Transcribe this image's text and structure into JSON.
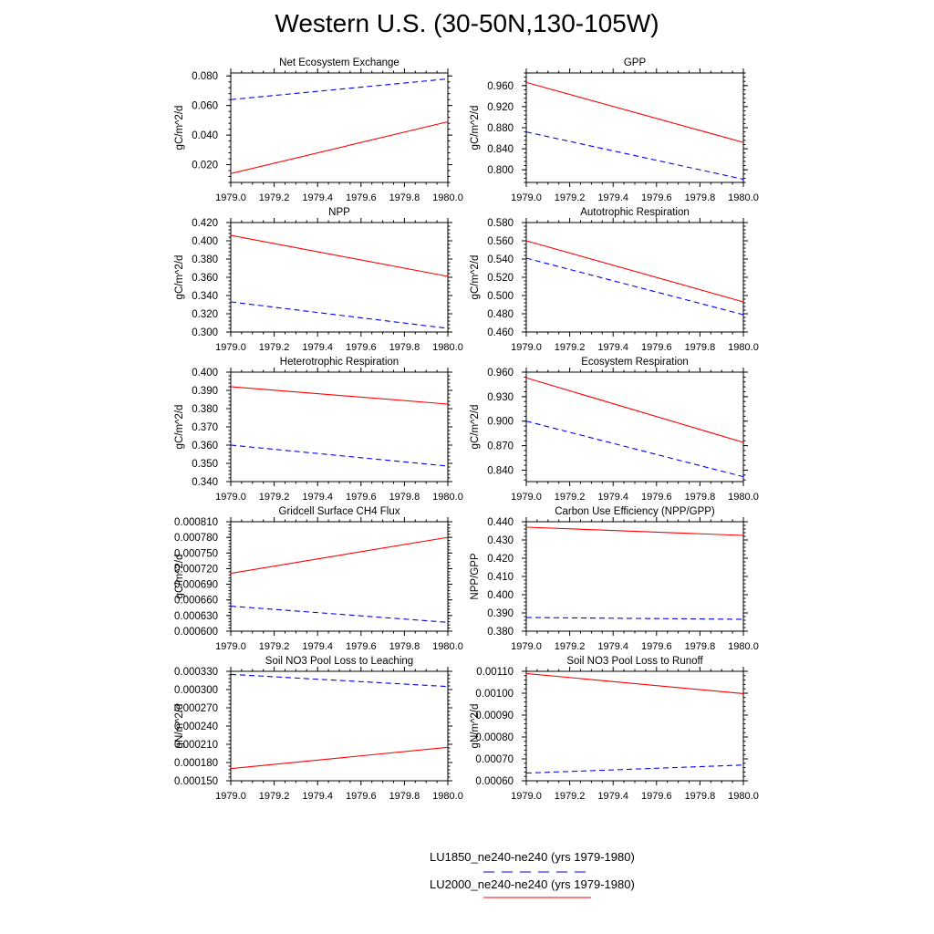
{
  "title": "Western U.S. (30-50N,130-105W)",
  "legend": [
    {
      "label": "LU1850_ne240-ne240 (yrs 1979-1980)",
      "color": "#0000ff",
      "dash": true
    },
    {
      "label": "LU2000_ne240-ne240 (yrs 1979-1980)",
      "color": "#ff0000",
      "dash": false
    }
  ],
  "chart_data": [
    {
      "type": "line",
      "title": "Net Ecosystem Exchange",
      "ylabel": "gC/m^2/d",
      "x": [
        1979.0,
        1980.0
      ],
      "xlim": [
        1979.0,
        1980.0
      ],
      "xticks": [
        "1979.0",
        "1979.2",
        "1979.4",
        "1979.6",
        "1979.8",
        "1980.0"
      ],
      "ylim": [
        0.008,
        0.082
      ],
      "yticks": [
        "0.020",
        "0.040",
        "0.060",
        "0.080"
      ],
      "series": [
        {
          "values": [
            0.064,
            0.078
          ],
          "color": "#0000ff",
          "dash": true
        },
        {
          "values": [
            0.014,
            0.049
          ],
          "color": "#ff0000",
          "dash": false
        }
      ]
    },
    {
      "type": "line",
      "title": "GPP",
      "ylabel": "gC/m^2/d",
      "x": [
        1979.0,
        1980.0
      ],
      "xlim": [
        1979.0,
        1980.0
      ],
      "xticks": [
        "1979.0",
        "1979.2",
        "1979.4",
        "1979.6",
        "1979.8",
        "1980.0"
      ],
      "ylim": [
        0.776,
        0.984
      ],
      "yticks": [
        "0.800",
        "0.840",
        "0.880",
        "0.920",
        "0.960"
      ],
      "series": [
        {
          "values": [
            0.872,
            0.782
          ],
          "color": "#0000ff",
          "dash": true
        },
        {
          "values": [
            0.966,
            0.852
          ],
          "color": "#ff0000",
          "dash": false
        }
      ]
    },
    {
      "type": "line",
      "title": "NPP",
      "ylabel": "gC/m^2/d",
      "x": [
        1979.0,
        1980.0
      ],
      "xlim": [
        1979.0,
        1980.0
      ],
      "xticks": [
        "1979.0",
        "1979.2",
        "1979.4",
        "1979.6",
        "1979.8",
        "1980.0"
      ],
      "ylim": [
        0.3,
        0.42
      ],
      "yticks": [
        "0.300",
        "0.320",
        "0.340",
        "0.360",
        "0.380",
        "0.400",
        "0.420"
      ],
      "series": [
        {
          "values": [
            0.333,
            0.304
          ],
          "color": "#0000ff",
          "dash": true
        },
        {
          "values": [
            0.406,
            0.361
          ],
          "color": "#ff0000",
          "dash": false
        }
      ]
    },
    {
      "type": "line",
      "title": "Autotrophic Respiration",
      "ylabel": "gC/m^2/d",
      "x": [
        1979.0,
        1980.0
      ],
      "xlim": [
        1979.0,
        1980.0
      ],
      "xticks": [
        "1979.0",
        "1979.2",
        "1979.4",
        "1979.6",
        "1979.8",
        "1980.0"
      ],
      "ylim": [
        0.46,
        0.58
      ],
      "yticks": [
        "0.460",
        "0.480",
        "0.500",
        "0.520",
        "0.540",
        "0.560",
        "0.580"
      ],
      "series": [
        {
          "values": [
            0.541,
            0.479
          ],
          "color": "#0000ff",
          "dash": true
        },
        {
          "values": [
            0.56,
            0.493
          ],
          "color": "#ff0000",
          "dash": false
        }
      ]
    },
    {
      "type": "line",
      "title": "Heterotrophic Respiration",
      "ylabel": "gC/m^2/d",
      "x": [
        1979.0,
        1980.0
      ],
      "xlim": [
        1979.0,
        1980.0
      ],
      "xticks": [
        "1979.0",
        "1979.2",
        "1979.4",
        "1979.6",
        "1979.8",
        "1980.0"
      ],
      "ylim": [
        0.34,
        0.4
      ],
      "yticks": [
        "0.340",
        "0.350",
        "0.360",
        "0.370",
        "0.380",
        "0.390",
        "0.400"
      ],
      "series": [
        {
          "values": [
            0.36,
            0.3485
          ],
          "color": "#0000ff",
          "dash": true
        },
        {
          "values": [
            0.392,
            0.3825
          ],
          "color": "#ff0000",
          "dash": false
        }
      ]
    },
    {
      "type": "line",
      "title": "Ecosystem Respiration",
      "ylabel": "gC/m^2/d",
      "x": [
        1979.0,
        1980.0
      ],
      "xlim": [
        1979.0,
        1980.0
      ],
      "xticks": [
        "1979.0",
        "1979.2",
        "1979.4",
        "1979.6",
        "1979.8",
        "1980.0"
      ],
      "ylim": [
        0.826,
        0.96
      ],
      "yticks": [
        "0.840",
        "0.870",
        "0.900",
        "0.930",
        "0.960"
      ],
      "series": [
        {
          "values": [
            0.9,
            0.832
          ],
          "color": "#0000ff",
          "dash": true
        },
        {
          "values": [
            0.953,
            0.874
          ],
          "color": "#ff0000",
          "dash": false
        }
      ]
    },
    {
      "type": "line",
      "title": "Gridcell Surface CH4 Flux",
      "ylabel": "gC/m^2/d",
      "x": [
        1979.0,
        1980.0
      ],
      "xlim": [
        1979.0,
        1980.0
      ],
      "xticks": [
        "1979.0",
        "1979.2",
        "1979.4",
        "1979.6",
        "1979.8",
        "1980.0"
      ],
      "ylim": [
        0.0006,
        0.00081
      ],
      "yticks": [
        "0.000600",
        "0.000630",
        "0.000660",
        "0.000690",
        "0.000720",
        "0.000750",
        "0.000780",
        "0.000810"
      ],
      "series": [
        {
          "values": [
            0.000648,
            0.000617
          ],
          "color": "#0000ff",
          "dash": true
        },
        {
          "values": [
            0.000711,
            0.00078
          ],
          "color": "#ff0000",
          "dash": false
        }
      ]
    },
    {
      "type": "line",
      "title": "Carbon Use Efficiency (NPP/GPP)",
      "ylabel": "NPP/GPP",
      "x": [
        1979.0,
        1980.0
      ],
      "xlim": [
        1979.0,
        1980.0
      ],
      "xticks": [
        "1979.0",
        "1979.2",
        "1979.4",
        "1979.6",
        "1979.8",
        "1980.0"
      ],
      "ylim": [
        0.38,
        0.44
      ],
      "yticks": [
        "0.380",
        "0.390",
        "0.400",
        "0.410",
        "0.420",
        "0.430",
        "0.440"
      ],
      "series": [
        {
          "values": [
            0.3875,
            0.3865
          ],
          "color": "#0000ff",
          "dash": true
        },
        {
          "values": [
            0.437,
            0.4325
          ],
          "color": "#ff0000",
          "dash": false
        }
      ]
    },
    {
      "type": "line",
      "title": "Soil NO3 Pool Loss to Leaching",
      "ylabel": "gN/m^2/d",
      "x": [
        1979.0,
        1980.0
      ],
      "xlim": [
        1979.0,
        1980.0
      ],
      "xticks": [
        "1979.0",
        "1979.2",
        "1979.4",
        "1979.6",
        "1979.8",
        "1980.0"
      ],
      "ylim": [
        0.00015,
        0.00033
      ],
      "yticks": [
        "0.000150",
        "0.000180",
        "0.000210",
        "0.000240",
        "0.000270",
        "0.000300",
        "0.000330"
      ],
      "series": [
        {
          "values": [
            0.000325,
            0.000305
          ],
          "color": "#0000ff",
          "dash": true
        },
        {
          "values": [
            0.00017,
            0.000205
          ],
          "color": "#ff0000",
          "dash": false
        }
      ]
    },
    {
      "type": "line",
      "title": "Soil NO3 Pool Loss to Runoff",
      "ylabel": "gN/m^2/d",
      "x": [
        1979.0,
        1980.0
      ],
      "xlim": [
        1979.0,
        1980.0
      ],
      "xticks": [
        "1979.0",
        "1979.2",
        "1979.4",
        "1979.6",
        "1979.8",
        "1980.0"
      ],
      "ylim": [
        0.0006,
        0.0011
      ],
      "yticks": [
        "0.00060",
        "0.00070",
        "0.00080",
        "0.00090",
        "0.00100",
        "0.00110"
      ],
      "series": [
        {
          "values": [
            0.000635,
            0.000672
          ],
          "color": "#0000ff",
          "dash": true
        },
        {
          "values": [
            0.00109,
            0.000998
          ],
          "color": "#ff0000",
          "dash": false
        }
      ]
    }
  ]
}
